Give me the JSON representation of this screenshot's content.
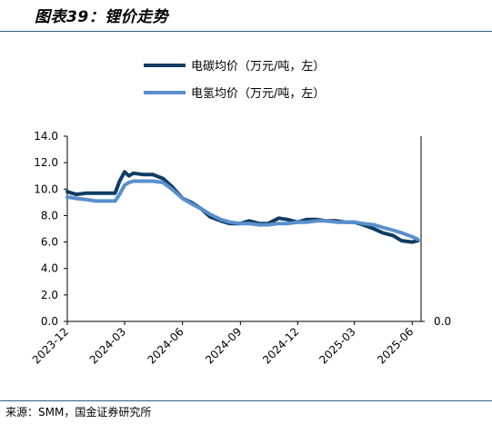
{
  "header": {
    "title": "图表39：锂价走势"
  },
  "footer": {
    "source": "来源：SMM，国金证券研究所"
  },
  "chart_data": {
    "type": "line",
    "legend_position": "top-center",
    "grid": false,
    "ylim": [
      0,
      14
    ],
    "y_ticks": [
      "14.0",
      "12.0",
      "10.0",
      "8.0",
      "6.0",
      "4.0",
      "2.0",
      "0.0"
    ],
    "y_right_ticks": [
      "0.0"
    ],
    "x_ticks": [
      "2023-12",
      "2024-03",
      "2024-06",
      "2024-09",
      "2024-12",
      "2025-03",
      "2025-06"
    ],
    "colors": {
      "lithium_carbonate": "#0f3d63",
      "lithium_hydroxide": "#5a8fcc",
      "axis": "#000000"
    },
    "series": [
      {
        "name": "电碳均价（万元/吨，左）",
        "x": [
          "2023-12-01",
          "2023-12-15",
          "2024-01-01",
          "2024-01-15",
          "2024-02-01",
          "2024-02-15",
          "2024-02-22",
          "2024-03-01",
          "2024-03-08",
          "2024-03-15",
          "2024-04-01",
          "2024-04-15",
          "2024-05-01",
          "2024-05-15",
          "2024-06-01",
          "2024-06-15",
          "2024-07-01",
          "2024-07-15",
          "2024-08-01",
          "2024-08-15",
          "2024-09-01",
          "2024-09-15",
          "2024-10-01",
          "2024-10-15",
          "2024-11-01",
          "2024-11-15",
          "2024-12-01",
          "2024-12-15",
          "2025-01-01",
          "2025-01-15",
          "2025-02-01",
          "2025-02-15",
          "2025-03-01",
          "2025-03-15",
          "2025-04-01",
          "2025-04-15",
          "2025-05-01",
          "2025-05-15",
          "2025-06-01",
          "2025-06-10"
        ],
        "values": [
          9.8,
          9.6,
          9.7,
          9.7,
          9.7,
          9.7,
          10.6,
          11.3,
          11.0,
          11.2,
          11.1,
          11.1,
          10.8,
          10.2,
          9.3,
          9.0,
          8.5,
          7.9,
          7.6,
          7.4,
          7.4,
          7.6,
          7.4,
          7.4,
          7.8,
          7.7,
          7.5,
          7.7,
          7.7,
          7.6,
          7.6,
          7.5,
          7.5,
          7.3,
          7.0,
          6.7,
          6.5,
          6.1,
          6.0,
          6.1
        ]
      },
      {
        "name": "电氢均价（万元/吨，左）",
        "x": [
          "2023-12-01",
          "2023-12-15",
          "2024-01-01",
          "2024-01-15",
          "2024-02-01",
          "2024-02-15",
          "2024-02-22",
          "2024-03-01",
          "2024-03-08",
          "2024-03-15",
          "2024-04-01",
          "2024-04-15",
          "2024-05-01",
          "2024-05-15",
          "2024-06-01",
          "2024-06-15",
          "2024-07-01",
          "2024-07-15",
          "2024-08-01",
          "2024-08-15",
          "2024-09-01",
          "2024-09-15",
          "2024-10-01",
          "2024-10-15",
          "2024-11-01",
          "2024-11-15",
          "2024-12-01",
          "2024-12-15",
          "2025-01-01",
          "2025-01-15",
          "2025-02-01",
          "2025-02-15",
          "2025-03-01",
          "2025-03-15",
          "2025-04-01",
          "2025-04-15",
          "2025-05-01",
          "2025-05-15",
          "2025-06-01",
          "2025-06-10"
        ],
        "values": [
          9.4,
          9.3,
          9.2,
          9.1,
          9.1,
          9.1,
          9.6,
          10.3,
          10.5,
          10.6,
          10.6,
          10.6,
          10.5,
          10.0,
          9.3,
          8.9,
          8.5,
          8.1,
          7.7,
          7.5,
          7.4,
          7.4,
          7.3,
          7.3,
          7.4,
          7.4,
          7.5,
          7.5,
          7.6,
          7.6,
          7.5,
          7.5,
          7.5,
          7.4,
          7.3,
          7.1,
          6.9,
          6.7,
          6.4,
          6.2
        ]
      }
    ]
  }
}
